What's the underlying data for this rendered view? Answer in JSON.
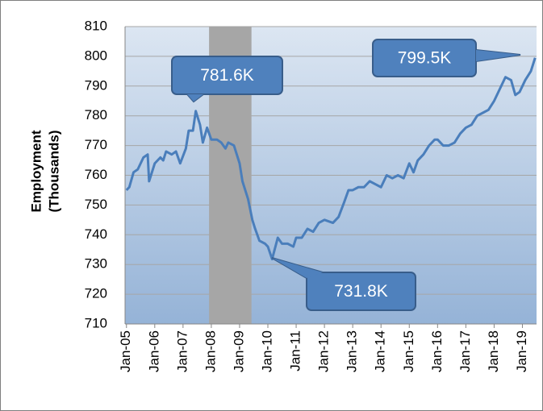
{
  "chart_data": {
    "type": "line",
    "ylabel": [
      "Employment",
      "(Thousands)"
    ],
    "x": [
      2005.0,
      2005.1,
      2005.25,
      2005.4,
      2005.6,
      2005.75,
      2005.8,
      2006.0,
      2006.2,
      2006.3,
      2006.4,
      2006.6,
      2006.75,
      2006.9,
      2007.1,
      2007.2,
      2007.35,
      2007.45,
      2007.6,
      2007.7,
      2007.85,
      2008.0,
      2008.2,
      2008.35,
      2008.5,
      2008.6,
      2008.8,
      2009.0,
      2009.1,
      2009.3,
      2009.45,
      2009.55,
      2009.7,
      2009.9,
      2010.0,
      2010.15,
      2010.35,
      2010.5,
      2010.7,
      2010.9,
      2011.0,
      2011.2,
      2011.4,
      2011.6,
      2011.8,
      2012.0,
      2012.3,
      2012.5,
      2012.7,
      2012.85,
      2013.0,
      2013.2,
      2013.4,
      2013.6,
      2013.8,
      2014.0,
      2014.2,
      2014.4,
      2014.6,
      2014.8,
      2015.0,
      2015.15,
      2015.3,
      2015.5,
      2015.7,
      2015.9,
      2016.0,
      2016.2,
      2016.4,
      2016.6,
      2016.8,
      2017.0,
      2017.2,
      2017.4,
      2017.6,
      2017.8,
      2018.0,
      2018.2,
      2018.4,
      2018.6,
      2018.75,
      2018.9,
      2019.1,
      2019.3,
      2019.45
    ],
    "series": [
      {
        "name": "Employment",
        "color": "#4a7ebb",
        "values": [
          755,
          756,
          761,
          762,
          766,
          767,
          758,
          764,
          766,
          765,
          768,
          767,
          768,
          764,
          769,
          775,
          775,
          781.6,
          777,
          771,
          776,
          772,
          772,
          771,
          769,
          771,
          770,
          764,
          758,
          752,
          745,
          742,
          738,
          737,
          736,
          731.8,
          739,
          737,
          737,
          736,
          739,
          739,
          742,
          741,
          744,
          745,
          744,
          746,
          751,
          755,
          755,
          756,
          756,
          758,
          757,
          756,
          760,
          759,
          760,
          759,
          764,
          761,
          765,
          767,
          770,
          772,
          772,
          770,
          770,
          771,
          774,
          776,
          777,
          780,
          781,
          782,
          785,
          789,
          793,
          792,
          787,
          788,
          792,
          795,
          799.5
        ]
      }
    ],
    "shaded_range": [
      2007.92,
      2009.42
    ],
    "annotations": [
      "781.6K",
      "799.5K",
      "731.8K"
    ],
    "ylim": [
      710,
      810
    ],
    "yticks": [
      710,
      720,
      730,
      740,
      750,
      760,
      770,
      780,
      790,
      800,
      810
    ],
    "xlim": [
      2004.95,
      2019.5
    ],
    "xticks": [
      {
        "value": 2005,
        "label": "Jan-05"
      },
      {
        "value": 2006,
        "label": "Jan-06"
      },
      {
        "value": 2007,
        "label": "Jan-07"
      },
      {
        "value": 2008,
        "label": "Jan-08"
      },
      {
        "value": 2009,
        "label": "Jan-09"
      },
      {
        "value": 2010,
        "label": "Jan-10"
      },
      {
        "value": 2011,
        "label": "Jan-11"
      },
      {
        "value": 2012,
        "label": "Jan-12"
      },
      {
        "value": 2013,
        "label": "Jan-13"
      },
      {
        "value": 2014,
        "label": "Jan-14"
      },
      {
        "value": 2015,
        "label": "Jan-15"
      },
      {
        "value": 2016,
        "label": "Jan-16"
      },
      {
        "value": 2017,
        "label": "Jan-17"
      },
      {
        "value": 2018,
        "label": "Jan-18"
      },
      {
        "value": 2019,
        "label": "Jan-19"
      }
    ],
    "grid": true
  }
}
